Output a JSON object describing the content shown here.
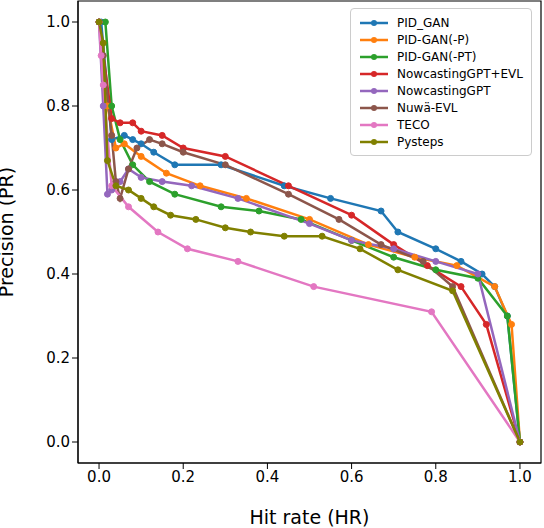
{
  "chart_data": {
    "type": "line",
    "x_label": "Hit rate (HR)",
    "y_label": "Precision (PR)",
    "xlim": [
      -0.05,
      1.05
    ],
    "ylim": [
      -0.05,
      1.05
    ],
    "xticks": [
      {
        "value": 0,
        "label": "0.0"
      },
      0.2,
      0.4,
      0.6,
      0.8,
      {
        "value": 1,
        "label": "1.0"
      }
    ],
    "yticks": [
      {
        "value": 0,
        "label": "0.0"
      },
      0.2,
      0.4,
      0.6,
      0.8,
      {
        "value": 1,
        "label": "1.0"
      }
    ],
    "grid": false,
    "legend": "upper right",
    "marker": "o",
    "series": [
      {
        "name": "PID_GAN",
        "color": "#1f77b4",
        "x": [
          0.005,
          0.03,
          0.06,
          0.08,
          0.1,
          0.13,
          0.18,
          0.29,
          0.44,
          0.55,
          0.67,
          0.71,
          0.8,
          0.86,
          0.91,
          0.94,
          0.97,
          1.0
        ],
        "values": [
          1.0,
          0.72,
          0.73,
          0.72,
          0.71,
          0.69,
          0.66,
          0.66,
          0.61,
          0.58,
          0.55,
          0.5,
          0.46,
          0.43,
          0.4,
          0.37,
          0.3,
          0.0
        ]
      },
      {
        "name": "PID-GAN(-P)",
        "color": "#ff7f0e",
        "x": [
          0.0,
          0.02,
          0.04,
          0.06,
          0.1,
          0.16,
          0.24,
          0.35,
          0.5,
          0.64,
          0.75,
          0.85,
          0.94,
          0.98,
          1.0
        ],
        "values": [
          1.0,
          0.8,
          0.7,
          0.71,
          0.68,
          0.64,
          0.61,
          0.58,
          0.53,
          0.47,
          0.44,
          0.42,
          0.37,
          0.28,
          0.0
        ]
      },
      {
        "name": "PID-GAN(-PT)",
        "color": "#2ca02c",
        "x": [
          0.0,
          0.015,
          0.03,
          0.05,
          0.08,
          0.12,
          0.18,
          0.29,
          0.38,
          0.48,
          0.6,
          0.7,
          0.8,
          0.9,
          0.97,
          1.0
        ],
        "values": [
          1.0,
          1.0,
          0.8,
          0.72,
          0.66,
          0.62,
          0.59,
          0.56,
          0.55,
          0.53,
          0.48,
          0.44,
          0.41,
          0.39,
          0.3,
          0.0
        ]
      },
      {
        "name": "NowcastingGPT+EVL",
        "color": "#d62728",
        "x": [
          0.0,
          0.03,
          0.05,
          0.08,
          0.1,
          0.15,
          0.2,
          0.3,
          0.45,
          0.6,
          0.7,
          0.78,
          0.86,
          0.92,
          1.0
        ],
        "values": [
          1.0,
          0.77,
          0.76,
          0.76,
          0.74,
          0.73,
          0.7,
          0.68,
          0.61,
          0.54,
          0.47,
          0.42,
          0.37,
          0.28,
          0.0
        ]
      },
      {
        "name": "NowcastingGPT",
        "color": "#9467bd",
        "x": [
          0.0,
          0.01,
          0.02,
          0.03,
          0.05,
          0.07,
          0.1,
          0.15,
          0.22,
          0.33,
          0.5,
          0.6,
          0.7,
          0.8,
          0.9,
          1.0
        ],
        "values": [
          1.0,
          0.8,
          0.59,
          0.6,
          0.62,
          0.65,
          0.63,
          0.62,
          0.61,
          0.58,
          0.52,
          0.48,
          0.46,
          0.43,
          0.4,
          0.0
        ]
      },
      {
        "name": "Nuwä-EVL",
        "color": "#8c564b",
        "x": [
          0.0,
          0.01,
          0.03,
          0.04,
          0.05,
          0.07,
          0.09,
          0.12,
          0.15,
          0.2,
          0.3,
          0.45,
          0.57,
          0.67,
          0.77,
          0.84,
          1.0
        ],
        "values": [
          1.0,
          0.92,
          0.73,
          0.62,
          0.58,
          0.65,
          0.7,
          0.72,
          0.71,
          0.69,
          0.66,
          0.59,
          0.53,
          0.47,
          0.43,
          0.37,
          0.0
        ]
      },
      {
        "name": "TECO",
        "color": "#e377c2",
        "x": [
          0.0,
          0.005,
          0.01,
          0.03,
          0.07,
          0.14,
          0.21,
          0.33,
          0.51,
          0.79,
          1.0
        ],
        "values": [
          1.0,
          0.92,
          0.85,
          0.61,
          0.56,
          0.5,
          0.46,
          0.43,
          0.37,
          0.31,
          0.0
        ]
      },
      {
        "name": "Pysteps",
        "color": "#808000",
        "x": [
          0.0,
          0.01,
          0.02,
          0.04,
          0.07,
          0.1,
          0.13,
          0.17,
          0.23,
          0.3,
          0.36,
          0.44,
          0.53,
          0.62,
          0.71,
          0.84,
          1.0
        ],
        "values": [
          1.0,
          0.95,
          0.67,
          0.61,
          0.6,
          0.58,
          0.56,
          0.54,
          0.53,
          0.51,
          0.5,
          0.49,
          0.49,
          0.46,
          0.41,
          0.36,
          0.0
        ]
      }
    ]
  }
}
